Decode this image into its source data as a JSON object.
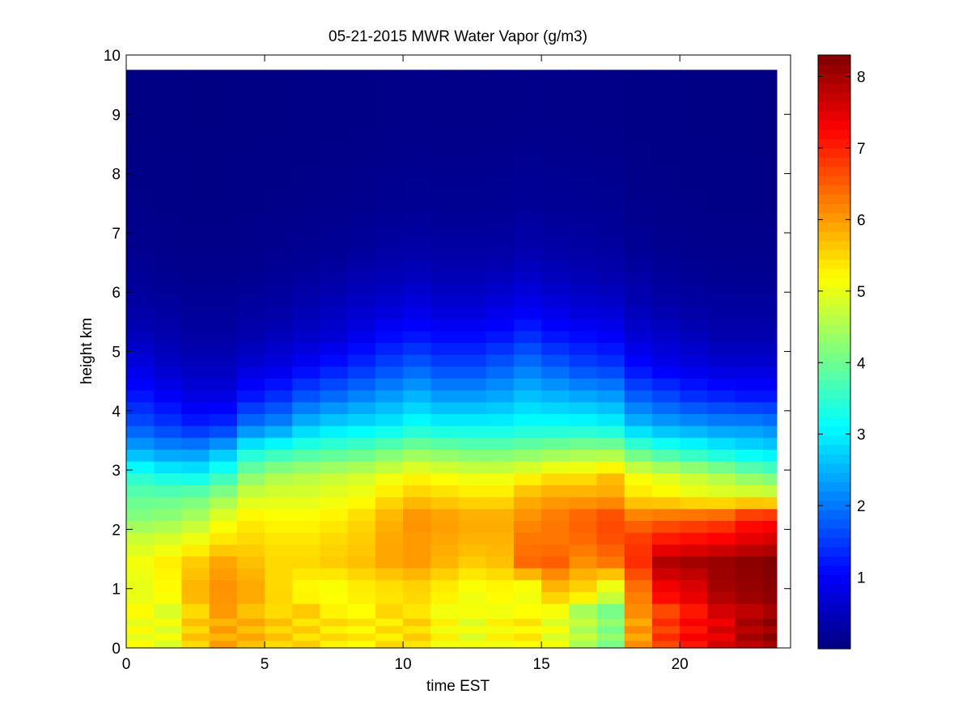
{
  "chart_data": {
    "type": "heatmap",
    "title": "05-21-2015 MWR Water Vapor (g/m3)",
    "xlabel": "time EST",
    "ylabel": "height km",
    "xlim": [
      0,
      24
    ],
    "ylim": [
      0,
      10
    ],
    "x_ticks": [
      "0",
      "5",
      "10",
      "15",
      "20"
    ],
    "y_ticks": [
      "0",
      "1",
      "2",
      "3",
      "4",
      "5",
      "6",
      "7",
      "8",
      "9",
      "10"
    ],
    "colorbar": {
      "colormap": "jet",
      "range": [
        0,
        8.3
      ],
      "ticks": [
        "1",
        "2",
        "3",
        "4",
        "5",
        "6",
        "7",
        "8"
      ]
    },
    "time_hours": [
      0.5,
      1.5,
      2.5,
      3.5,
      4.5,
      5.5,
      6.5,
      7.5,
      8.5,
      9.5,
      10.5,
      11.5,
      12.5,
      13.5,
      14.5,
      15.5,
      16.5,
      17.5,
      18.5,
      19.5,
      20.5,
      21.5,
      22.5,
      23.5
    ],
    "time_max_hours": 23.5,
    "height_max_km": 9.75,
    "lowest_layer_top_km": 0.75,
    "bands": [
      {
        "label": "0.0-0.75 km",
        "values": [
          5.1,
          5.0,
          5.6,
          5.9,
          5.8,
          5.6,
          5.5,
          5.4,
          5.3,
          5.4,
          5.5,
          5.2,
          5.0,
          5.2,
          5.3,
          5.0,
          4.6,
          4.2,
          6.0,
          6.8,
          7.2,
          7.5,
          7.9,
          8.1
        ]
      },
      {
        "label": "0.75-1.25 km",
        "values": [
          5.0,
          5.2,
          5.8,
          6.1,
          5.9,
          5.5,
          5.2,
          5.1,
          5.3,
          5.4,
          5.5,
          5.3,
          5.1,
          5.2,
          5.0,
          5.7,
          5.5,
          4.9,
          6.3,
          7.3,
          7.5,
          8.0,
          8.1,
          8.2
        ]
      },
      {
        "label": "1.25-1.65 km",
        "values": [
          5.1,
          5.3,
          5.6,
          5.9,
          5.7,
          5.5,
          5.5,
          5.6,
          5.7,
          5.9,
          6.0,
          5.8,
          5.6,
          5.7,
          6.4,
          6.5,
          6.1,
          6.3,
          6.9,
          7.9,
          8.0,
          8.1,
          8.2,
          8.3
        ]
      },
      {
        "label": "1.65-2.0 km",
        "values": [
          4.8,
          4.9,
          5.1,
          5.4,
          5.5,
          5.4,
          5.4,
          5.5,
          5.6,
          5.9,
          6.0,
          5.9,
          5.8,
          5.8,
          6.3,
          6.3,
          6.4,
          6.6,
          6.8,
          7.1,
          7.2,
          7.3,
          7.5,
          7.6
        ]
      },
      {
        "label": "2.0-2.4 km",
        "values": [
          4.2,
          4.3,
          4.5,
          5.0,
          5.3,
          5.2,
          5.2,
          5.3,
          5.5,
          5.8,
          6.1,
          6.0,
          5.9,
          5.9,
          6.1,
          6.3,
          6.5,
          6.7,
          6.3,
          6.4,
          6.5,
          6.6,
          7.0,
          7.1
        ]
      },
      {
        "label": "2.4-2.75 km",
        "values": [
          3.9,
          3.9,
          4.0,
          4.3,
          4.8,
          4.9,
          4.9,
          5.0,
          5.1,
          5.4,
          5.6,
          5.5,
          5.4,
          5.4,
          5.8,
          5.9,
          5.9,
          5.9,
          5.4,
          5.3,
          5.1,
          5.0,
          5.0,
          4.9
        ]
      },
      {
        "label": "2.75-3.1 km",
        "values": [
          3.4,
          3.2,
          3.1,
          3.5,
          4.2,
          4.5,
          4.6,
          4.7,
          4.8,
          5.0,
          5.2,
          5.1,
          5.0,
          5.0,
          5.2,
          5.4,
          5.4,
          5.7,
          5.1,
          4.9,
          4.7,
          4.5,
          4.2,
          4.0
        ]
      },
      {
        "label": "3.1-3.5 km",
        "values": [
          2.5,
          2.3,
          2.3,
          2.6,
          3.3,
          3.5,
          3.7,
          3.8,
          3.9,
          4.1,
          4.3,
          4.2,
          4.1,
          4.1,
          4.2,
          4.3,
          4.4,
          4.4,
          3.9,
          3.6,
          3.4,
          3.2,
          3.0,
          2.9
        ]
      },
      {
        "label": "3.5-4.0 km",
        "values": [
          1.7,
          1.5,
          1.3,
          1.4,
          2.0,
          2.2,
          2.6,
          2.8,
          2.9,
          3.0,
          3.2,
          3.1,
          3.1,
          3.1,
          3.2,
          3.2,
          3.2,
          3.1,
          2.6,
          2.4,
          2.3,
          2.2,
          2.2,
          2.1
        ]
      },
      {
        "label": "4.0-4.5 km",
        "values": [
          1.2,
          1.0,
          0.8,
          0.8,
          1.2,
          1.4,
          1.7,
          1.9,
          2.1,
          2.3,
          2.5,
          2.3,
          2.3,
          2.4,
          2.6,
          2.5,
          2.4,
          2.3,
          1.8,
          1.6,
          1.4,
          1.3,
          1.2,
          1.2
        ]
      },
      {
        "label": "4.5-5.0 km",
        "values": [
          0.8,
          0.6,
          0.5,
          0.5,
          0.7,
          0.8,
          1.0,
          1.2,
          1.4,
          1.6,
          1.8,
          1.6,
          1.6,
          1.8,
          2.0,
          1.8,
          1.6,
          1.5,
          1.1,
          0.9,
          0.8,
          0.7,
          0.7,
          0.7
        ]
      },
      {
        "label": "5.0-5.5 km",
        "values": [
          0.5,
          0.4,
          0.3,
          0.3,
          0.4,
          0.5,
          0.6,
          0.7,
          0.9,
          1.1,
          1.2,
          1.1,
          1.1,
          1.2,
          1.4,
          1.2,
          1.1,
          1.0,
          0.7,
          0.6,
          0.5,
          0.4,
          0.4,
          0.4
        ]
      },
      {
        "label": "5.5-6.0 km",
        "values": [
          0.3,
          0.25,
          0.2,
          0.2,
          0.25,
          0.3,
          0.4,
          0.5,
          0.6,
          0.7,
          0.8,
          0.7,
          0.7,
          0.8,
          0.9,
          0.8,
          0.7,
          0.65,
          0.45,
          0.35,
          0.3,
          0.25,
          0.25,
          0.25
        ]
      },
      {
        "label": "6.0-6.5 km",
        "values": [
          0.2,
          0.15,
          0.12,
          0.12,
          0.15,
          0.2,
          0.25,
          0.3,
          0.4,
          0.45,
          0.5,
          0.45,
          0.45,
          0.5,
          0.6,
          0.5,
          0.45,
          0.4,
          0.3,
          0.22,
          0.18,
          0.16,
          0.15,
          0.15
        ]
      },
      {
        "label": "6.5-7.0 km",
        "values": [
          0.12,
          0.1,
          0.08,
          0.08,
          0.1,
          0.12,
          0.15,
          0.18,
          0.22,
          0.28,
          0.32,
          0.28,
          0.28,
          0.3,
          0.36,
          0.32,
          0.28,
          0.25,
          0.18,
          0.13,
          0.11,
          0.1,
          0.1,
          0.1
        ]
      },
      {
        "label": "7.0-8.0 km",
        "values": [
          0.07,
          0.06,
          0.05,
          0.05,
          0.06,
          0.07,
          0.08,
          0.1,
          0.12,
          0.14,
          0.16,
          0.15,
          0.15,
          0.16,
          0.2,
          0.18,
          0.16,
          0.15,
          0.1,
          0.08,
          0.07,
          0.06,
          0.06,
          0.06
        ]
      },
      {
        "label": "8.0-9.75 km",
        "values": [
          0.04,
          0.04,
          0.03,
          0.03,
          0.04,
          0.04,
          0.05,
          0.05,
          0.06,
          0.07,
          0.08,
          0.07,
          0.07,
          0.08,
          0.09,
          0.08,
          0.08,
          0.07,
          0.05,
          0.05,
          0.04,
          0.04,
          0.04,
          0.04
        ]
      }
    ]
  }
}
